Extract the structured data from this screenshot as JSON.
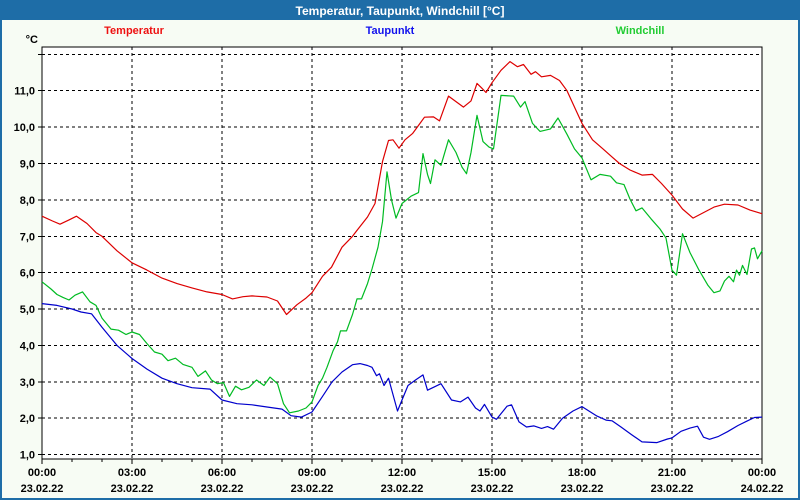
{
  "window": {
    "title": "Temperatur, Taupunkt, Windchill [°C]",
    "titlebar_color": "#1e6da7",
    "border_color": "#1e6da7",
    "background_color": "#f7fcf4",
    "plot_background_color": "#ffffff"
  },
  "legend": {
    "items": [
      {
        "label": "Temperatur",
        "color": "#ee1111"
      },
      {
        "label": "Taupunkt",
        "color": "#1111ee"
      },
      {
        "label": "Windchill",
        "color": "#22cc33"
      }
    ]
  },
  "chart_data": {
    "type": "line",
    "title": "Temperatur, Taupunkt, Windchill [°C]",
    "y_unit_label": "°C",
    "grid": true,
    "x_range_hours": [
      0,
      24
    ],
    "y_axis": {
      "min": 0.88,
      "max": 12.2,
      "grid_step": 1,
      "grid_values": [
        1,
        2,
        3,
        4,
        5,
        6,
        7,
        8,
        9,
        10,
        11,
        12
      ],
      "tick_labels": [
        {
          "v": 1,
          "label": "1,0"
        },
        {
          "v": 2,
          "label": "2,0"
        },
        {
          "v": 3,
          "label": "3,0"
        },
        {
          "v": 4,
          "label": "4,0"
        },
        {
          "v": 5,
          "label": "5,0"
        },
        {
          "v": 6,
          "label": "6,0"
        },
        {
          "v": 7,
          "label": "7,0"
        },
        {
          "v": 8,
          "label": "8,0"
        },
        {
          "v": 9,
          "label": "9,0"
        },
        {
          "v": 10,
          "label": "10,0"
        },
        {
          "v": 11,
          "label": "11,0"
        }
      ]
    },
    "x_axis": {
      "minor_tick_every_hours": 1,
      "grid_every_hours": 3,
      "major_ticks": [
        {
          "t": 0,
          "time": "00:00",
          "date": "23.02.22"
        },
        {
          "t": 3,
          "time": "03:00",
          "date": "23.02.22"
        },
        {
          "t": 6,
          "time": "06:00",
          "date": "23.02.22"
        },
        {
          "t": 9,
          "time": "09:00",
          "date": "23.02.22"
        },
        {
          "t": 12,
          "time": "12:00",
          "date": "23.02.22"
        },
        {
          "t": 15,
          "time": "15:00",
          "date": "23.02.22"
        },
        {
          "t": 18,
          "time": "18:00",
          "date": "23.02.22"
        },
        {
          "t": 21,
          "time": "21:00",
          "date": "23.02.22"
        },
        {
          "t": 24,
          "time": "00:00",
          "date": "24.02.22"
        }
      ]
    },
    "series": [
      {
        "name": "Temperatur",
        "color": "#dd0000",
        "points": [
          [
            0,
            7.55
          ],
          [
            0.35,
            7.42
          ],
          [
            0.6,
            7.33
          ],
          [
            0.9,
            7.45
          ],
          [
            1.15,
            7.55
          ],
          [
            1.5,
            7.35
          ],
          [
            1.8,
            7.1
          ],
          [
            2,
            7.0
          ],
          [
            2.5,
            6.6
          ],
          [
            3,
            6.27
          ],
          [
            3.5,
            6.07
          ],
          [
            4,
            5.85
          ],
          [
            4.5,
            5.7
          ],
          [
            5,
            5.58
          ],
          [
            5.5,
            5.47
          ],
          [
            6,
            5.4
          ],
          [
            6.35,
            5.28
          ],
          [
            6.7,
            5.34
          ],
          [
            7,
            5.36
          ],
          [
            7.5,
            5.33
          ],
          [
            7.85,
            5.22
          ],
          [
            8.15,
            4.85
          ],
          [
            8.5,
            5.12
          ],
          [
            8.8,
            5.3
          ],
          [
            9,
            5.45
          ],
          [
            9.35,
            5.9
          ],
          [
            9.65,
            6.15
          ],
          [
            10,
            6.7
          ],
          [
            10.35,
            7.0
          ],
          [
            10.5,
            7.16
          ],
          [
            10.85,
            7.53
          ],
          [
            11.1,
            7.9
          ],
          [
            11.35,
            9.05
          ],
          [
            11.55,
            9.63
          ],
          [
            11.7,
            9.65
          ],
          [
            11.9,
            9.42
          ],
          [
            12.1,
            9.65
          ],
          [
            12.35,
            9.82
          ],
          [
            12.6,
            10.1
          ],
          [
            12.75,
            10.27
          ],
          [
            13.05,
            10.28
          ],
          [
            13.25,
            10.17
          ],
          [
            13.55,
            10.85
          ],
          [
            13.8,
            10.7
          ],
          [
            14.05,
            10.55
          ],
          [
            14.3,
            10.72
          ],
          [
            14.5,
            11.2
          ],
          [
            14.65,
            11.08
          ],
          [
            14.8,
            10.95
          ],
          [
            15,
            11.22
          ],
          [
            15.3,
            11.56
          ],
          [
            15.6,
            11.8
          ],
          [
            15.85,
            11.66
          ],
          [
            16.05,
            11.72
          ],
          [
            16.3,
            11.45
          ],
          [
            16.45,
            11.52
          ],
          [
            16.65,
            11.38
          ],
          [
            16.95,
            11.42
          ],
          [
            17.25,
            11.28
          ],
          [
            17.5,
            11.0
          ],
          [
            17.75,
            10.55
          ],
          [
            18,
            10.1
          ],
          [
            18.35,
            9.65
          ],
          [
            18.7,
            9.4
          ],
          [
            19,
            9.18
          ],
          [
            19.25,
            9.0
          ],
          [
            19.6,
            8.82
          ],
          [
            20,
            8.68
          ],
          [
            20.35,
            8.7
          ],
          [
            20.65,
            8.45
          ],
          [
            21,
            8.13
          ],
          [
            21.35,
            7.75
          ],
          [
            21.7,
            7.5
          ],
          [
            22.05,
            7.65
          ],
          [
            22.4,
            7.8
          ],
          [
            22.75,
            7.88
          ],
          [
            23.2,
            7.86
          ],
          [
            23.6,
            7.72
          ],
          [
            24,
            7.62
          ]
        ]
      },
      {
        "name": "Taupunkt",
        "color": "#0000cc",
        "points": [
          [
            0,
            5.15
          ],
          [
            0.5,
            5.1
          ],
          [
            1,
            5.0
          ],
          [
            1.3,
            4.92
          ],
          [
            1.65,
            4.87
          ],
          [
            2,
            4.5
          ],
          [
            2.5,
            4.0
          ],
          [
            3,
            3.64
          ],
          [
            3.5,
            3.35
          ],
          [
            4,
            3.1
          ],
          [
            4.5,
            2.95
          ],
          [
            5,
            2.84
          ],
          [
            5.6,
            2.8
          ],
          [
            6,
            2.5
          ],
          [
            6.5,
            2.4
          ],
          [
            7,
            2.37
          ],
          [
            7.5,
            2.31
          ],
          [
            8,
            2.25
          ],
          [
            8.3,
            2.07
          ],
          [
            8.65,
            2.03
          ],
          [
            9,
            2.17
          ],
          [
            9.35,
            2.6
          ],
          [
            9.67,
            3.0
          ],
          [
            10,
            3.27
          ],
          [
            10.35,
            3.47
          ],
          [
            10.6,
            3.5
          ],
          [
            10.85,
            3.45
          ],
          [
            11,
            3.4
          ],
          [
            11.15,
            3.17
          ],
          [
            11.25,
            3.22
          ],
          [
            11.4,
            2.9
          ],
          [
            11.55,
            3.1
          ],
          [
            11.85,
            2.2
          ],
          [
            12,
            2.5
          ],
          [
            12.2,
            2.9
          ],
          [
            12.45,
            3.05
          ],
          [
            12.7,
            3.19
          ],
          [
            12.85,
            2.77
          ],
          [
            13.05,
            2.85
          ],
          [
            13.3,
            2.95
          ],
          [
            13.65,
            2.5
          ],
          [
            13.95,
            2.45
          ],
          [
            14.2,
            2.58
          ],
          [
            14.45,
            2.28
          ],
          [
            14.6,
            2.2
          ],
          [
            14.75,
            2.38
          ],
          [
            15,
            2.03
          ],
          [
            15.15,
            1.97
          ],
          [
            15.5,
            2.33
          ],
          [
            15.65,
            2.37
          ],
          [
            15.9,
            1.9
          ],
          [
            16.15,
            1.76
          ],
          [
            16.4,
            1.79
          ],
          [
            16.65,
            1.72
          ],
          [
            16.85,
            1.77
          ],
          [
            17.05,
            1.7
          ],
          [
            17.35,
            2.0
          ],
          [
            17.7,
            2.2
          ],
          [
            18,
            2.32
          ],
          [
            18.5,
            2.06
          ],
          [
            18.8,
            1.95
          ],
          [
            19,
            1.93
          ],
          [
            19.3,
            1.76
          ],
          [
            19.65,
            1.55
          ],
          [
            20,
            1.35
          ],
          [
            20.5,
            1.33
          ],
          [
            20.85,
            1.43
          ],
          [
            21,
            1.46
          ],
          [
            21.3,
            1.64
          ],
          [
            21.6,
            1.73
          ],
          [
            21.85,
            1.78
          ],
          [
            22.05,
            1.48
          ],
          [
            22.25,
            1.42
          ],
          [
            22.55,
            1.5
          ],
          [
            22.85,
            1.63
          ],
          [
            23.2,
            1.8
          ],
          [
            23.5,
            1.92
          ],
          [
            23.75,
            2.02
          ],
          [
            24,
            2.03
          ]
        ]
      },
      {
        "name": "Windchill",
        "color": "#00bb22",
        "points": [
          [
            0,
            5.75
          ],
          [
            0.3,
            5.55
          ],
          [
            0.5,
            5.4
          ],
          [
            0.7,
            5.32
          ],
          [
            0.9,
            5.25
          ],
          [
            1.1,
            5.38
          ],
          [
            1.35,
            5.47
          ],
          [
            1.6,
            5.2
          ],
          [
            1.8,
            5.1
          ],
          [
            2,
            4.75
          ],
          [
            2.3,
            4.45
          ],
          [
            2.55,
            4.42
          ],
          [
            2.8,
            4.3
          ],
          [
            3,
            4.37
          ],
          [
            3.25,
            4.3
          ],
          [
            3.5,
            4.05
          ],
          [
            3.75,
            3.82
          ],
          [
            4,
            3.76
          ],
          [
            4.2,
            3.58
          ],
          [
            4.45,
            3.65
          ],
          [
            4.7,
            3.48
          ],
          [
            5,
            3.4
          ],
          [
            5.2,
            3.15
          ],
          [
            5.45,
            3.3
          ],
          [
            5.65,
            3.05
          ],
          [
            5.85,
            2.95
          ],
          [
            6.05,
            2.98
          ],
          [
            6.25,
            2.6
          ],
          [
            6.45,
            2.88
          ],
          [
            6.65,
            2.78
          ],
          [
            6.9,
            2.85
          ],
          [
            7.15,
            3.05
          ],
          [
            7.4,
            2.9
          ],
          [
            7.6,
            3.13
          ],
          [
            7.85,
            2.95
          ],
          [
            8.05,
            2.4
          ],
          [
            8.25,
            2.15
          ],
          [
            8.55,
            2.2
          ],
          [
            8.8,
            2.28
          ],
          [
            9,
            2.45
          ],
          [
            9.2,
            2.9
          ],
          [
            9.35,
            3.1
          ],
          [
            9.5,
            3.4
          ],
          [
            9.7,
            3.85
          ],
          [
            9.85,
            4.1
          ],
          [
            9.95,
            4.4
          ],
          [
            10.15,
            4.4
          ],
          [
            10.35,
            4.85
          ],
          [
            10.5,
            5.28
          ],
          [
            10.65,
            5.28
          ],
          [
            10.85,
            5.7
          ],
          [
            11,
            6.1
          ],
          [
            11.2,
            6.7
          ],
          [
            11.35,
            7.4
          ],
          [
            11.5,
            8.77
          ],
          [
            11.65,
            8.0
          ],
          [
            11.8,
            7.5
          ],
          [
            12,
            7.9
          ],
          [
            12.3,
            8.1
          ],
          [
            12.55,
            8.2
          ],
          [
            12.7,
            9.27
          ],
          [
            12.85,
            8.7
          ],
          [
            12.95,
            8.45
          ],
          [
            13.1,
            9.1
          ],
          [
            13.3,
            8.95
          ],
          [
            13.55,
            9.65
          ],
          [
            13.8,
            9.3
          ],
          [
            14,
            8.9
          ],
          [
            14.15,
            8.72
          ],
          [
            14.3,
            9.3
          ],
          [
            14.5,
            10.32
          ],
          [
            14.7,
            9.6
          ],
          [
            14.9,
            9.45
          ],
          [
            15.05,
            9.4
          ],
          [
            15.3,
            10.87
          ],
          [
            15.72,
            10.85
          ],
          [
            15.95,
            10.55
          ],
          [
            16.1,
            10.7
          ],
          [
            16.35,
            10.1
          ],
          [
            16.6,
            9.88
          ],
          [
            16.95,
            9.95
          ],
          [
            17.2,
            10.25
          ],
          [
            17.5,
            9.8
          ],
          [
            17.75,
            9.4
          ],
          [
            18,
            9.15
          ],
          [
            18.3,
            8.55
          ],
          [
            18.6,
            8.7
          ],
          [
            18.95,
            8.65
          ],
          [
            19.15,
            8.47
          ],
          [
            19.4,
            8.42
          ],
          [
            19.6,
            8.02
          ],
          [
            19.8,
            7.7
          ],
          [
            20,
            7.78
          ],
          [
            20.3,
            7.48
          ],
          [
            20.6,
            7.2
          ],
          [
            20.8,
            6.95
          ],
          [
            21,
            6.07
          ],
          [
            21.15,
            5.93
          ],
          [
            21.35,
            7.07
          ],
          [
            21.6,
            6.55
          ],
          [
            21.9,
            6.07
          ],
          [
            22.2,
            5.65
          ],
          [
            22.4,
            5.45
          ],
          [
            22.6,
            5.5
          ],
          [
            22.75,
            5.77
          ],
          [
            22.9,
            5.9
          ],
          [
            23.05,
            5.75
          ],
          [
            23.15,
            6.07
          ],
          [
            23.25,
            5.93
          ],
          [
            23.35,
            6.2
          ],
          [
            23.5,
            5.95
          ],
          [
            23.65,
            6.65
          ],
          [
            23.75,
            6.68
          ],
          [
            23.85,
            6.38
          ],
          [
            24,
            6.6
          ]
        ]
      }
    ]
  }
}
